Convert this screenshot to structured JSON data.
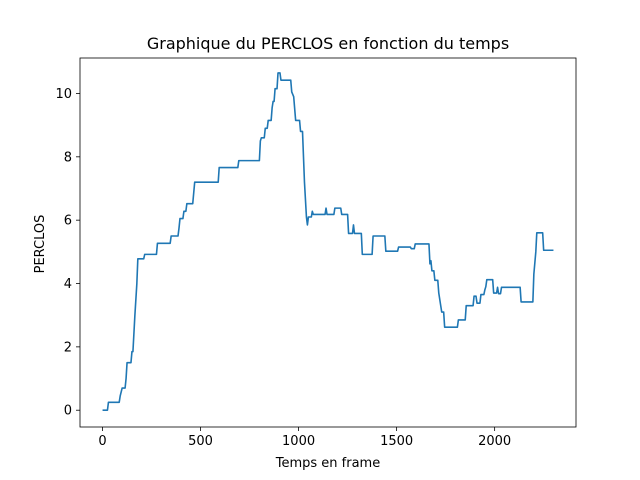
{
  "chart_data": {
    "type": "line",
    "title": "Graphique du PERCLOS en fonction du temps",
    "xlabel": "Temps en frame",
    "ylabel": "PERCLOS",
    "xlim": [
      -115,
      2415
    ],
    "ylim": [
      -0.53,
      11.12
    ],
    "xticks": [
      0,
      500,
      1000,
      1500,
      2000
    ],
    "yticks": [
      0,
      2,
      4,
      6,
      8,
      10
    ],
    "grid": false,
    "series": [
      {
        "color": "#1f77b4",
        "points": [
          [
            0,
            0.0
          ],
          [
            25,
            0.0
          ],
          [
            30,
            0.25
          ],
          [
            85,
            0.25
          ],
          [
            90,
            0.45
          ],
          [
            100,
            0.7
          ],
          [
            115,
            0.7
          ],
          [
            120,
            1.0
          ],
          [
            125,
            1.5
          ],
          [
            145,
            1.5
          ],
          [
            150,
            1.85
          ],
          [
            155,
            1.85
          ],
          [
            165,
            3.0
          ],
          [
            175,
            4.0
          ],
          [
            180,
            4.78
          ],
          [
            210,
            4.78
          ],
          [
            215,
            4.92
          ],
          [
            275,
            4.92
          ],
          [
            280,
            5.27
          ],
          [
            345,
            5.27
          ],
          [
            350,
            5.5
          ],
          [
            385,
            5.5
          ],
          [
            390,
            5.75
          ],
          [
            395,
            6.05
          ],
          [
            410,
            6.05
          ],
          [
            415,
            6.28
          ],
          [
            425,
            6.28
          ],
          [
            430,
            6.52
          ],
          [
            460,
            6.52
          ],
          [
            470,
            7.2
          ],
          [
            590,
            7.2
          ],
          [
            595,
            7.66
          ],
          [
            690,
            7.66
          ],
          [
            695,
            7.88
          ],
          [
            800,
            7.88
          ],
          [
            805,
            8.5
          ],
          [
            810,
            8.6
          ],
          [
            825,
            8.6
          ],
          [
            830,
            8.9
          ],
          [
            840,
            8.9
          ],
          [
            845,
            9.15
          ],
          [
            860,
            9.15
          ],
          [
            865,
            9.55
          ],
          [
            870,
            9.75
          ],
          [
            875,
            9.75
          ],
          [
            880,
            10.15
          ],
          [
            890,
            10.15
          ],
          [
            895,
            10.65
          ],
          [
            905,
            10.65
          ],
          [
            910,
            10.42
          ],
          [
            960,
            10.42
          ],
          [
            965,
            10.05
          ],
          [
            975,
            9.9
          ],
          [
            985,
            9.15
          ],
          [
            1005,
            9.15
          ],
          [
            1010,
            8.8
          ],
          [
            1020,
            8.8
          ],
          [
            1030,
            7.2
          ],
          [
            1040,
            6.1
          ],
          [
            1045,
            5.85
          ],
          [
            1050,
            6.1
          ],
          [
            1065,
            6.1
          ],
          [
            1070,
            6.28
          ],
          [
            1075,
            6.18
          ],
          [
            1135,
            6.18
          ],
          [
            1140,
            6.38
          ],
          [
            1145,
            6.18
          ],
          [
            1180,
            6.18
          ],
          [
            1185,
            6.38
          ],
          [
            1215,
            6.38
          ],
          [
            1220,
            6.18
          ],
          [
            1250,
            6.18
          ],
          [
            1255,
            5.58
          ],
          [
            1275,
            5.58
          ],
          [
            1280,
            5.85
          ],
          [
            1285,
            5.58
          ],
          [
            1320,
            5.58
          ],
          [
            1325,
            4.92
          ],
          [
            1375,
            4.92
          ],
          [
            1380,
            5.5
          ],
          [
            1440,
            5.5
          ],
          [
            1445,
            5.02
          ],
          [
            1505,
            5.02
          ],
          [
            1510,
            5.15
          ],
          [
            1570,
            5.15
          ],
          [
            1575,
            5.1
          ],
          [
            1590,
            5.1
          ],
          [
            1595,
            5.25
          ],
          [
            1665,
            5.25
          ],
          [
            1670,
            4.62
          ],
          [
            1675,
            4.72
          ],
          [
            1680,
            4.4
          ],
          [
            1690,
            4.4
          ],
          [
            1695,
            4.1
          ],
          [
            1710,
            4.1
          ],
          [
            1715,
            3.7
          ],
          [
            1725,
            3.3
          ],
          [
            1730,
            3.1
          ],
          [
            1740,
            3.1
          ],
          [
            1745,
            2.62
          ],
          [
            1810,
            2.62
          ],
          [
            1815,
            2.85
          ],
          [
            1850,
            2.85
          ],
          [
            1855,
            3.3
          ],
          [
            1890,
            3.3
          ],
          [
            1895,
            3.6
          ],
          [
            1905,
            3.6
          ],
          [
            1910,
            3.38
          ],
          [
            1925,
            3.38
          ],
          [
            1930,
            3.65
          ],
          [
            1945,
            3.65
          ],
          [
            1950,
            3.8
          ],
          [
            1955,
            3.9
          ],
          [
            1960,
            4.12
          ],
          [
            1990,
            4.12
          ],
          [
            1995,
            3.7
          ],
          [
            2010,
            3.7
          ],
          [
            2015,
            3.88
          ],
          [
            2020,
            3.68
          ],
          [
            2030,
            3.68
          ],
          [
            2035,
            3.88
          ],
          [
            2130,
            3.88
          ],
          [
            2135,
            3.42
          ],
          [
            2195,
            3.42
          ],
          [
            2200,
            4.3
          ],
          [
            2210,
            5.0
          ],
          [
            2215,
            5.6
          ],
          [
            2245,
            5.6
          ],
          [
            2250,
            5.05
          ],
          [
            2300,
            5.05
          ]
        ]
      }
    ]
  }
}
